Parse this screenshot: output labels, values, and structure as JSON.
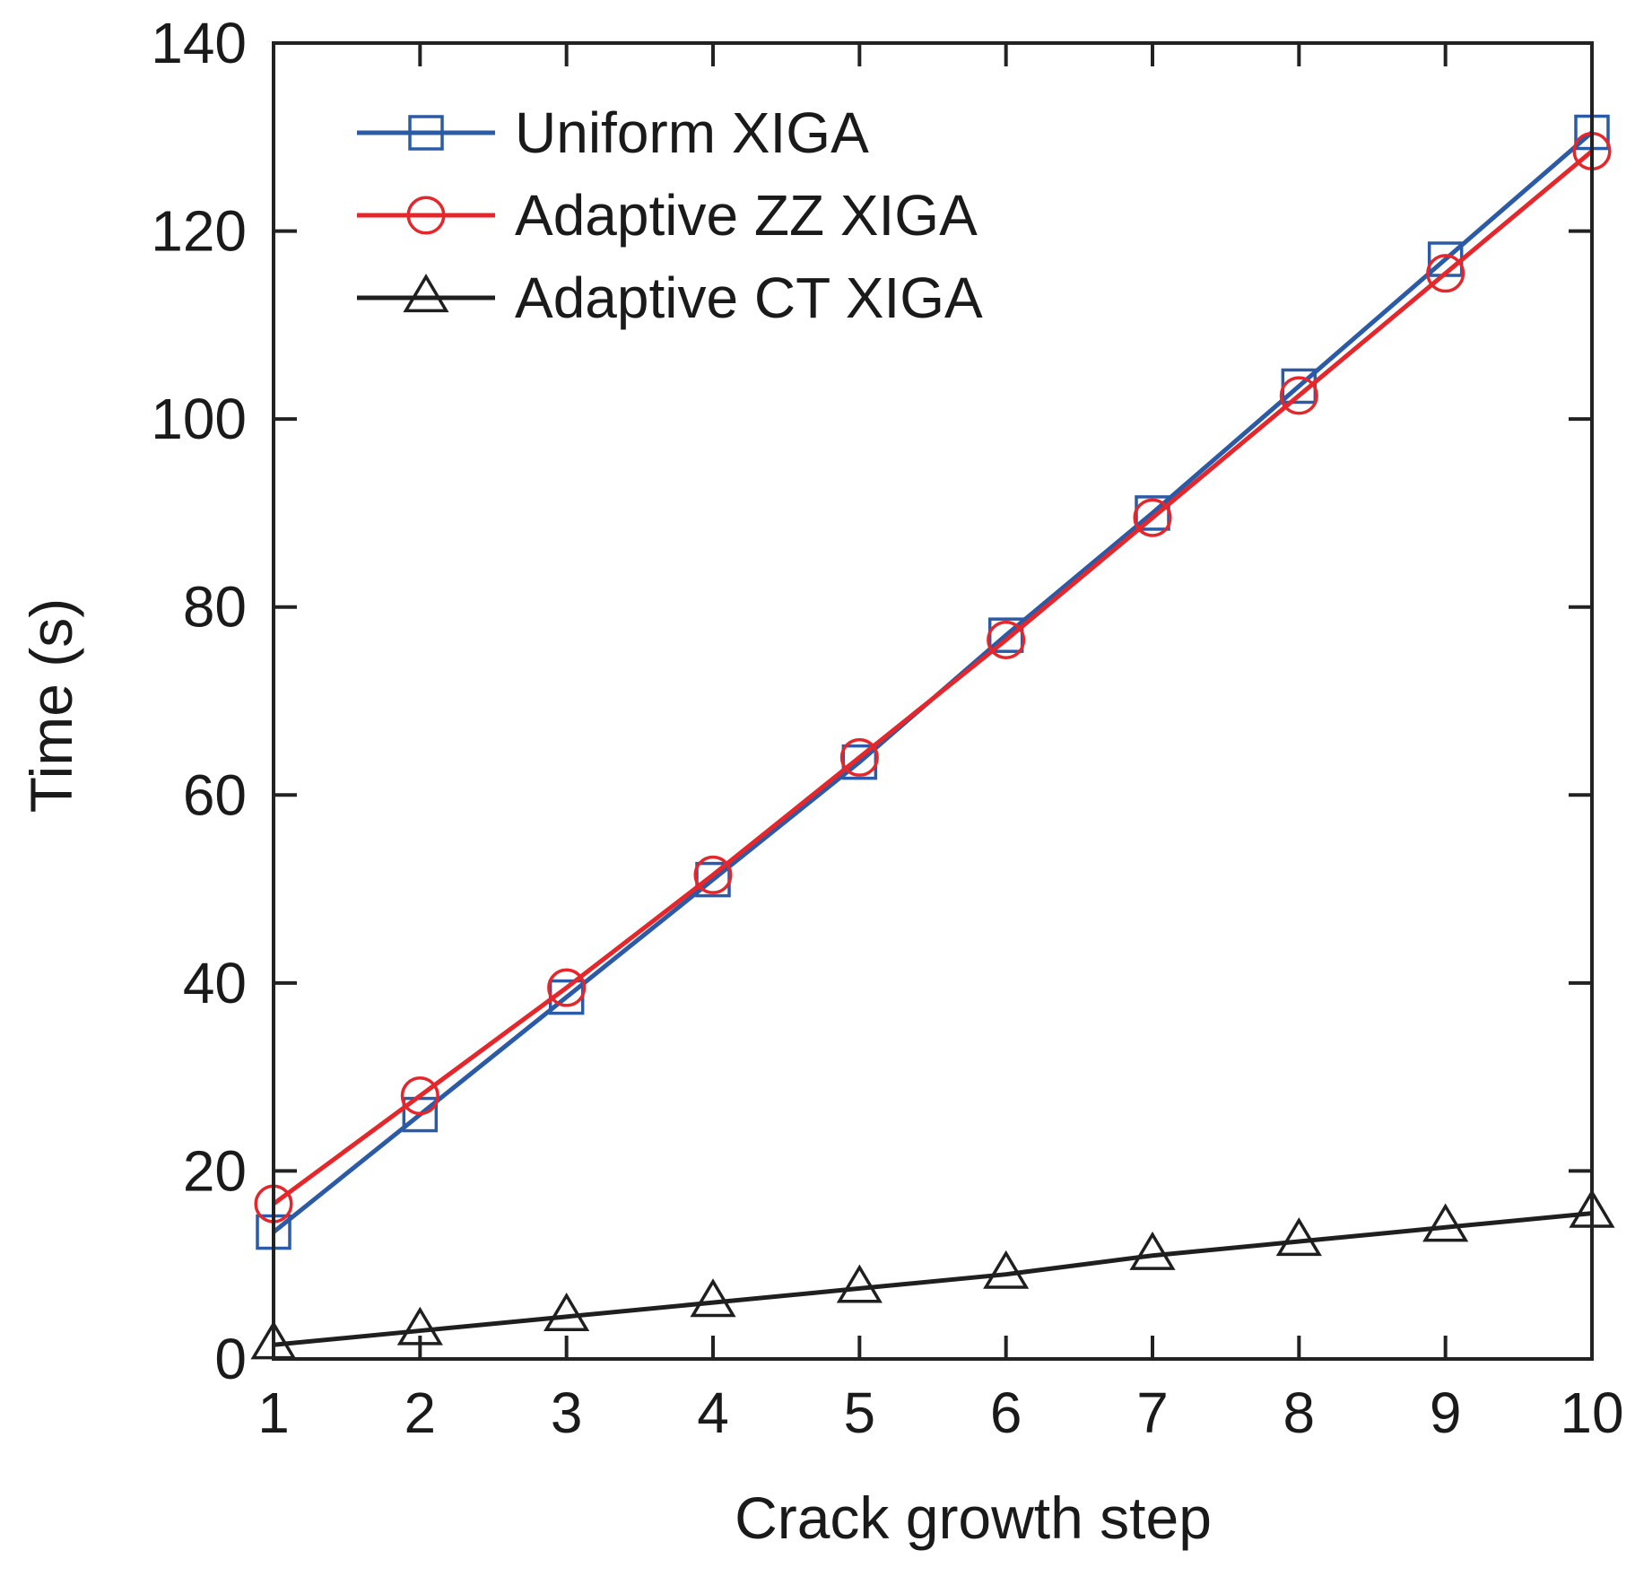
{
  "chart_data": {
    "type": "line",
    "title": "",
    "xlabel": "Crack growth step",
    "ylabel": "Time (s)",
    "xlim": [
      1,
      10
    ],
    "ylim": [
      0,
      140
    ],
    "x": [
      1,
      2,
      3,
      4,
      5,
      6,
      7,
      8,
      9,
      10
    ],
    "xticks": [
      "1",
      "2",
      "3",
      "4",
      "5",
      "6",
      "7",
      "8",
      "9",
      "10"
    ],
    "yticks": [
      "0",
      "20",
      "40",
      "60",
      "80",
      "100",
      "120",
      "140"
    ],
    "legend_position": "top-left",
    "series": [
      {
        "name": "Uniform XIGA",
        "marker": "square",
        "color": "#2b5aa7",
        "values": [
          13.5,
          26,
          38.5,
          51,
          63.5,
          77,
          90,
          103.5,
          117,
          130.5
        ]
      },
      {
        "name": "Adaptive ZZ XIGA",
        "marker": "circle",
        "color": "#e5262b",
        "values": [
          16.5,
          28,
          39.5,
          51.5,
          64,
          76.5,
          89.5,
          102.5,
          115.5,
          128.5
        ]
      },
      {
        "name": "Adaptive CT XIGA",
        "marker": "triangle",
        "color": "#1f1f1f",
        "values": [
          1.5,
          3,
          4.5,
          6,
          7.5,
          9,
          11,
          12.5,
          14,
          15.5
        ]
      }
    ]
  }
}
